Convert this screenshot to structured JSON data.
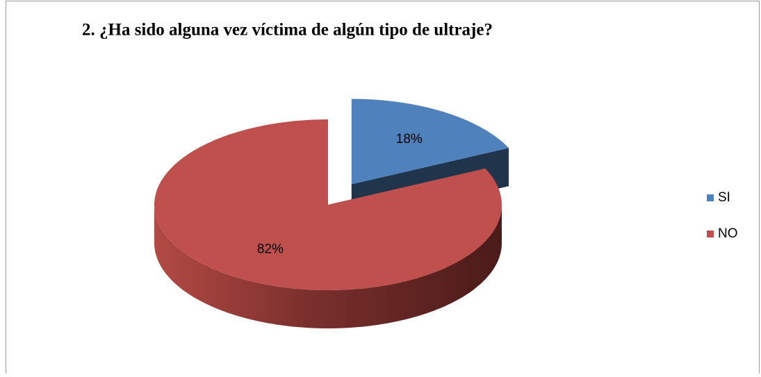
{
  "chart_data": {
    "type": "pie",
    "title": "2. ¿Ha sido alguna vez víctima de algún tipo de ultraje?",
    "categories": [
      "SI",
      "NO"
    ],
    "values": [
      18,
      82
    ],
    "value_labels": [
      "18%",
      "82%"
    ],
    "colors": [
      "#4f81bd",
      "#c0504d"
    ],
    "exploded": [
      true,
      false
    ],
    "legend": "right"
  }
}
